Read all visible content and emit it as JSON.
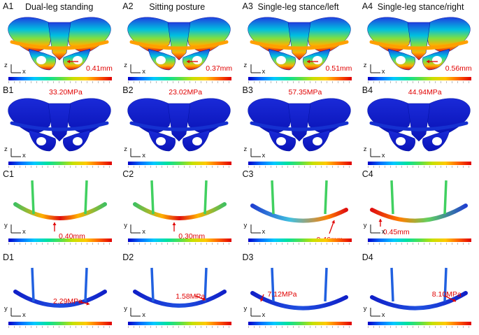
{
  "rows": [
    {
      "kind": "pelvis-displacement",
      "panels": [
        {
          "id": "A1",
          "title": "Dual-leg standing",
          "value": "0.41mm",
          "axes": [
            "z",
            "x"
          ]
        },
        {
          "id": "A2",
          "title": "Sitting posture",
          "value": "0.37mm",
          "axes": [
            "z",
            "x"
          ]
        },
        {
          "id": "A3",
          "title": "Single-leg stance/left",
          "value": "0.51mm",
          "axes": [
            "z",
            "x"
          ]
        },
        {
          "id": "A4",
          "title": "Single-leg stance/right",
          "value": "0.56mm",
          "axes": [
            "z",
            "x"
          ]
        }
      ]
    },
    {
      "kind": "pelvis-stress",
      "panels": [
        {
          "id": "B1",
          "value": "33.20MPa",
          "axes": [
            "z",
            "x"
          ]
        },
        {
          "id": "B2",
          "value": "23.02MPa",
          "axes": [
            "z",
            "x"
          ]
        },
        {
          "id": "B3",
          "value": "57.35MPa",
          "axes": [
            "z",
            "x"
          ]
        },
        {
          "id": "B4",
          "value": "44.94MPa",
          "axes": [
            "z",
            "x"
          ]
        }
      ]
    },
    {
      "kind": "plate-displacement",
      "panels": [
        {
          "id": "C1",
          "value": "0.40mm",
          "axes": [
            "y",
            "x"
          ]
        },
        {
          "id": "C2",
          "value": "0.30mm",
          "axes": [
            "y",
            "x"
          ]
        },
        {
          "id": "C3",
          "value": "0.46mm",
          "axes": [
            "y",
            "x"
          ]
        },
        {
          "id": "C4",
          "value": "0.45mm",
          "axes": [
            "y",
            "x"
          ]
        }
      ]
    },
    {
      "kind": "plate-stress",
      "panels": [
        {
          "id": "D1",
          "value": "2.29MPa",
          "axes": [
            "y",
            "x"
          ]
        },
        {
          "id": "D2",
          "value": "1.58MPa",
          "axes": [
            "y",
            "x"
          ]
        },
        {
          "id": "D3",
          "value": "7.12MPa",
          "axes": [
            "y",
            "x"
          ]
        },
        {
          "id": "D4",
          "value": "8.10MPa",
          "axes": [
            "y",
            "x"
          ]
        }
      ]
    }
  ],
  "colors": {
    "accent": "#e00000",
    "deep_blue": "#0a1ecf",
    "colorbar": [
      "#0000c8",
      "#0070ff",
      "#00c8ff",
      "#00e0a0",
      "#50e050",
      "#c8e000",
      "#ffc800",
      "#ff6000",
      "#e00000"
    ]
  }
}
